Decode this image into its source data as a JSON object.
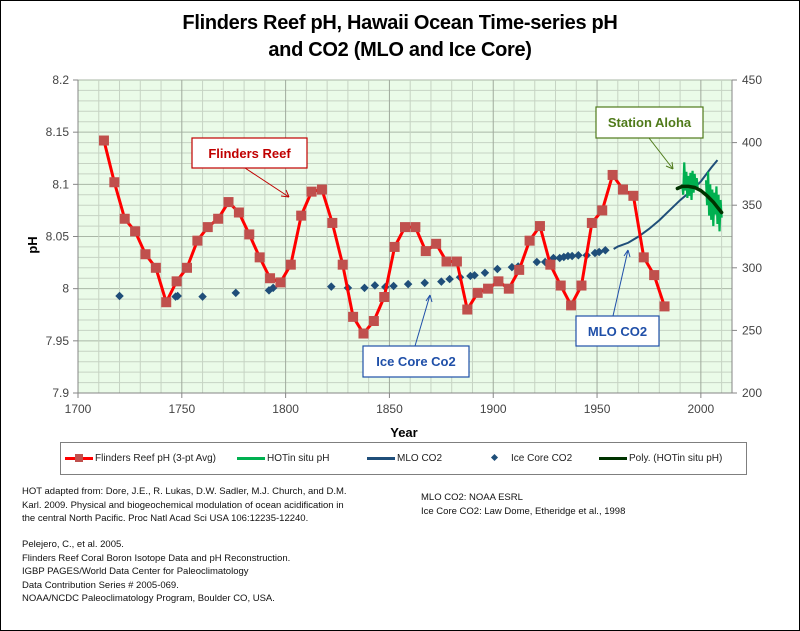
{
  "chart_data": {
    "type": "line",
    "title_lines": [
      "Flinders Reef pH, Hawaii Ocean Time-series pH",
      "and CO2 (MLO and Ice Core)"
    ],
    "xlabel": "Year",
    "ylabel": "pH",
    "y2label": "",
    "xlim": [
      1700,
      2015
    ],
    "ylim": [
      7.9,
      8.2
    ],
    "y2lim": [
      200,
      450
    ],
    "grid": true,
    "x_ticks": [
      "1700",
      "1750",
      "1800",
      "1850",
      "1900",
      "1950",
      "2000"
    ],
    "y_ticks": [
      "7.9",
      "7.95",
      "8",
      "8.05",
      "8.1",
      "8.15",
      "8.2"
    ],
    "y2_ticks": [
      "200",
      "250",
      "300",
      "350",
      "400",
      "450"
    ],
    "legend_position": "bottom",
    "series": [
      {
        "name": "Flinders Reef pH (3-pt Avg)",
        "axis": "left",
        "color": "#ff0000",
        "marker_color": "#c0504d",
        "x": [
          1712.5,
          1717.5,
          1722.5,
          1727.5,
          1732.5,
          1737.5,
          1742.5,
          1747.5,
          1752.5,
          1757.5,
          1762.5,
          1767.5,
          1772.5,
          1777.5,
          1782.5,
          1787.5,
          1792.5,
          1797.5,
          1802.5,
          1807.5,
          1812.5,
          1817.5,
          1822.5,
          1827.5,
          1832.5,
          1837.5,
          1842.5,
          1847.5,
          1852.5,
          1857.5,
          1862.5,
          1867.5,
          1872.5,
          1877.5,
          1882.5,
          1887.5,
          1892.5,
          1897.5,
          1902.5,
          1907.5,
          1912.5,
          1917.5,
          1922.5,
          1927.5,
          1932.5,
          1937.5,
          1942.5,
          1947.5,
          1952.5,
          1957.5,
          1962.5,
          1967.5,
          1972.5,
          1977.5,
          1982.5
        ],
        "values": [
          8.142,
          8.102,
          8.067,
          8.055,
          8.033,
          8.02,
          7.987,
          8.007,
          8.02,
          8.046,
          8.059,
          8.067,
          8.083,
          8.073,
          8.052,
          8.03,
          8.01,
          8.006,
          8.023,
          8.07,
          8.093,
          8.095,
          8.063,
          8.023,
          7.973,
          7.957,
          7.969,
          7.992,
          8.04,
          8.059,
          8.059,
          8.036,
          8.043,
          8.026,
          8.026,
          7.98,
          7.996,
          8.0,
          8.007,
          8.0,
          8.018,
          8.046,
          8.06,
          8.023,
          8.003,
          7.984,
          8.003,
          8.063,
          8.075,
          8.109,
          8.095,
          8.089,
          8.03,
          8.013,
          7.983
        ]
      },
      {
        "name": "HOT in situ pH",
        "legend_label": "HOTin situ pH",
        "axis": "left",
        "color": "#00b050",
        "x": [
          1991.0,
          1991.5,
          1992.0,
          1992.5,
          1993.0,
          1993.5,
          1994.0,
          1994.5,
          1995.0,
          1995.5,
          1996.0,
          1996.5,
          1997.0,
          1997.5,
          1998.0,
          1998.5,
          2002.5,
          2003.0,
          2003.5,
          2004.0,
          2004.5,
          2005.0,
          2005.5,
          2006.0,
          2006.5,
          2007.0,
          2007.5,
          2008.0,
          2008.5,
          2009.0,
          2009.5,
          2010.0
        ],
        "values": [
          8.1,
          8.09,
          8.121,
          8.094,
          8.112,
          8.087,
          8.108,
          8.089,
          8.111,
          8.085,
          8.113,
          8.092,
          8.11,
          8.098,
          8.106,
          8.096,
          8.104,
          8.08,
          8.112,
          8.07,
          8.1,
          8.066,
          8.095,
          8.06,
          8.092,
          8.071,
          8.098,
          8.062,
          8.09,
          8.055,
          8.085,
          8.068
        ]
      },
      {
        "name": "MLO CO2",
        "axis": "right",
        "color": "#1f4e79",
        "x": [
          1958,
          1960,
          1965,
          1970,
          1975,
          1980,
          1985,
          1990,
          1995,
          2000,
          2005,
          2008
        ],
        "values": [
          315,
          317,
          320,
          325,
          331,
          338,
          346,
          354,
          361,
          369,
          380,
          386
        ]
      },
      {
        "name": "Ice Core CO2",
        "axis": "right",
        "color": "#1f4e79",
        "marker": "diamond",
        "x": [
          1720,
          1747,
          1748,
          1760,
          1776,
          1792,
          1794,
          1822,
          1830,
          1838,
          1843,
          1848,
          1852,
          1859,
          1867,
          1875,
          1879,
          1884,
          1889,
          1891,
          1896,
          1902,
          1909,
          1912,
          1921,
          1925,
          1929,
          1932,
          1934,
          1936,
          1938,
          1941,
          1945,
          1949,
          1951,
          1954
        ],
        "values": [
          277.5,
          277,
          277.5,
          277,
          280,
          282,
          284,
          285,
          284,
          284,
          286,
          284.7,
          285.5,
          287,
          288,
          289,
          291,
          292.5,
          293.5,
          294,
          296,
          299,
          300.5,
          301,
          304.6,
          304.6,
          307.8,
          307.8,
          308.6,
          309.4,
          309.4,
          310,
          310,
          311.8,
          312.6,
          314
        ]
      },
      {
        "name": "Poly. (HOT in situ pH)",
        "legend_label": "Poly. (HOTin situ pH)",
        "axis": "left",
        "color": "#003300",
        "x": [
          1988.7,
          1991,
          1994,
          1997,
          2000,
          2003,
          2006,
          2008,
          2010
        ],
        "values": [
          8.096,
          8.098,
          8.098,
          8.097,
          8.094,
          8.089,
          8.083,
          8.078,
          8.073
        ]
      }
    ],
    "annotations": [
      {
        "text": "Flinders Reef",
        "color": "#c00000"
      },
      {
        "text": "Station Aloha",
        "color": "#4f7a1a"
      },
      {
        "text": "Ice Core Co2",
        "color": "#1f4fa8"
      },
      {
        "text": "MLO CO2",
        "color": "#1f4fa8"
      }
    ]
  },
  "legend": {
    "items": [
      {
        "label": "Flinders Reef pH (3-pt Avg)"
      },
      {
        "label": "HOTin situ pH"
      },
      {
        "label": "MLO CO2"
      },
      {
        "label": "Ice Core CO2"
      },
      {
        "label": "Poly. (HOTin situ pH)"
      }
    ]
  },
  "references": {
    "left_block1": [
      "HOT  adapted from: Dore, J.E., R. Lukas, D.W. Sadler, M.J. Church, and D.M.",
      "Karl.  2009.  Physical and biogeochemical modulation of ocean acidification in",
      "the central North Pacific.  Proc Natl Acad Sci USA 106:12235-12240."
    ],
    "left_block2": [
      "Pelejero, C., et al.  2005.",
      "Flinders Reef Coral Boron Isotope Data and pH Reconstruction.",
      "IGBP PAGES/World Data Center for Paleoclimatology",
      "Data Contribution Series # 2005-069.",
      "NOAA/NCDC Paleoclimatology Program, Boulder CO, USA."
    ],
    "right_block": [
      "MLO CO2: NOAA ESRL",
      "Ice Core CO2:  Law Dome, Etheridge et al., 1998"
    ]
  }
}
